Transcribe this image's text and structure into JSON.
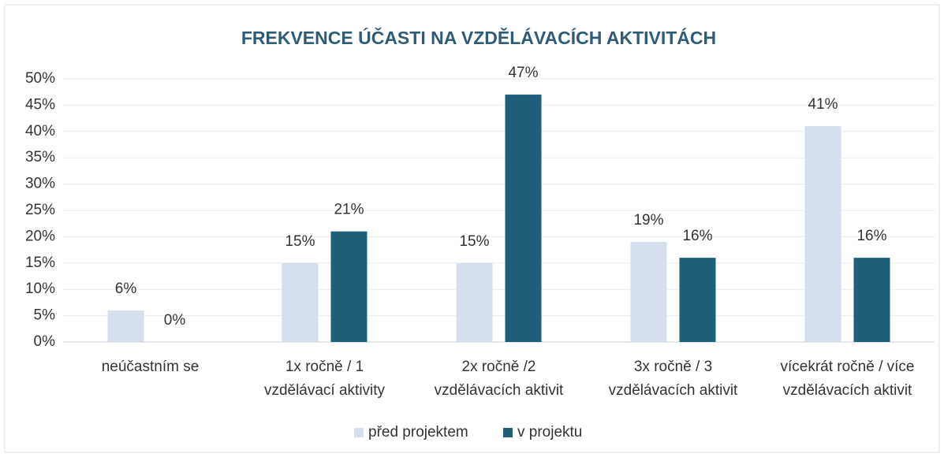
{
  "chart_data": {
    "type": "bar",
    "title": "FREKVENCE ÚČASTI NA VZDĚLÁVACÍCH AKTIVITÁCH",
    "categories": [
      [
        "neúčastním se"
      ],
      [
        "1x ročně / 1",
        "vzdělávací aktivity"
      ],
      [
        "2x ročně /2",
        "vzdělávacích aktivit"
      ],
      [
        "3x ročně / 3",
        "vzdělávacích aktivit"
      ],
      [
        "vícekrát ročně / více",
        "vzdělávacích aktivit"
      ]
    ],
    "series": [
      {
        "name": "před projektem",
        "color": "#d5dfee",
        "values": [
          6,
          15,
          15,
          19,
          41
        ],
        "value_labels": [
          "6%",
          "15%",
          "15%",
          "19%",
          "41%"
        ]
      },
      {
        "name": "v projektu",
        "color": "#1f5f7a",
        "values": [
          0,
          21,
          47,
          16,
          16
        ],
        "value_labels": [
          "0%",
          "21%",
          "47%",
          "16%",
          "16%"
        ]
      }
    ],
    "ylim": [
      0,
      50
    ],
    "yticks": [
      {
        "value": 0,
        "label": "0%"
      },
      {
        "value": 5,
        "label": "5%"
      },
      {
        "value": 10,
        "label": "10%"
      },
      {
        "value": 15,
        "label": "15%"
      },
      {
        "value": 20,
        "label": "20%"
      },
      {
        "value": 25,
        "label": "25%"
      },
      {
        "value": 30,
        "label": "30%"
      },
      {
        "value": 35,
        "label": "35%"
      },
      {
        "value": 40,
        "label": "40%"
      },
      {
        "value": 45,
        "label": "45%"
      },
      {
        "value": 50,
        "label": "50%"
      }
    ],
    "grid": true,
    "legend": "bottom"
  }
}
